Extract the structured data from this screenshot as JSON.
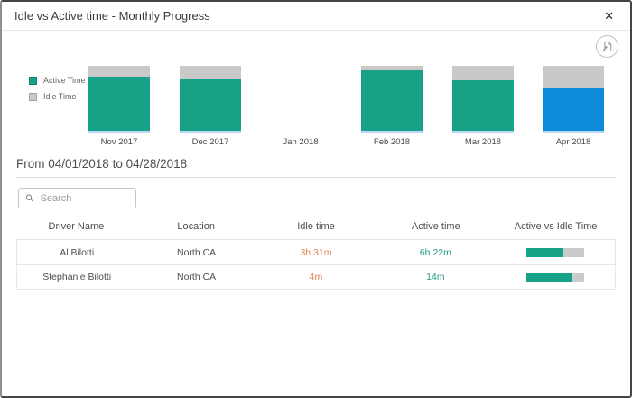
{
  "modal": {
    "title": "Idle vs Active time - Monthly Progress",
    "close_glyph": "✕"
  },
  "colors": {
    "active": "#17a288",
    "idle": "#c9c9c9",
    "selected_blue": "#0b8bd9",
    "idle_text": "#e08352",
    "active_text": "#1e9c86"
  },
  "chart": {
    "legend": [
      {
        "label": "Active Time",
        "color": "#17a288"
      },
      {
        "label": "Idle Time",
        "color": "#c9c9c9"
      }
    ],
    "months": [
      {
        "label": "Nov 2017",
        "active_pct": 84,
        "idle_pct": 16,
        "color": "#17a288"
      },
      {
        "label": "Dec 2017",
        "active_pct": 80,
        "idle_pct": 20,
        "color": "#17a288"
      },
      {
        "label": "Jan 2018",
        "active_pct": null,
        "idle_pct": null,
        "color": null
      },
      {
        "label": "Feb 2018",
        "active_pct": 93,
        "idle_pct": 7,
        "color": "#17a288"
      },
      {
        "label": "Mar 2018",
        "active_pct": 78,
        "idle_pct": 22,
        "color": "#17a288"
      },
      {
        "label": "Apr 2018",
        "active_pct": 66,
        "idle_pct": 34,
        "color": "#0b8bd9",
        "selected": true
      }
    ]
  },
  "chart_data": {
    "type": "bar",
    "subtype": "stacked-100-percent",
    "title": "Idle vs Active time - Monthly Progress",
    "categories": [
      "Nov 2017",
      "Dec 2017",
      "Jan 2018",
      "Feb 2018",
      "Mar 2018",
      "Apr 2018"
    ],
    "series": [
      {
        "name": "Active Time",
        "values": [
          84,
          80,
          null,
          93,
          78,
          66
        ]
      },
      {
        "name": "Idle Time",
        "values": [
          16,
          20,
          null,
          7,
          22,
          34
        ]
      }
    ],
    "legend_position": "left",
    "selected_category": "Apr 2018",
    "selected_color": "#0b8bd9",
    "grid": false
  },
  "period": {
    "label": "From 04/01/2018 to 04/28/2018"
  },
  "search": {
    "placeholder": "Search",
    "value": ""
  },
  "table": {
    "columns": [
      "Driver Name",
      "Location",
      "Idle time",
      "Active time",
      "Active vs Idle Time"
    ],
    "rows": [
      {
        "driver": "Al Bilotti",
        "location": "North CA",
        "idle": "3h 31m",
        "active": "6h 22m",
        "active_pct": 64
      },
      {
        "driver": "Stephanie Bilotti",
        "location": "North CA",
        "idle": "4m",
        "active": "14m",
        "active_pct": 78
      }
    ]
  }
}
